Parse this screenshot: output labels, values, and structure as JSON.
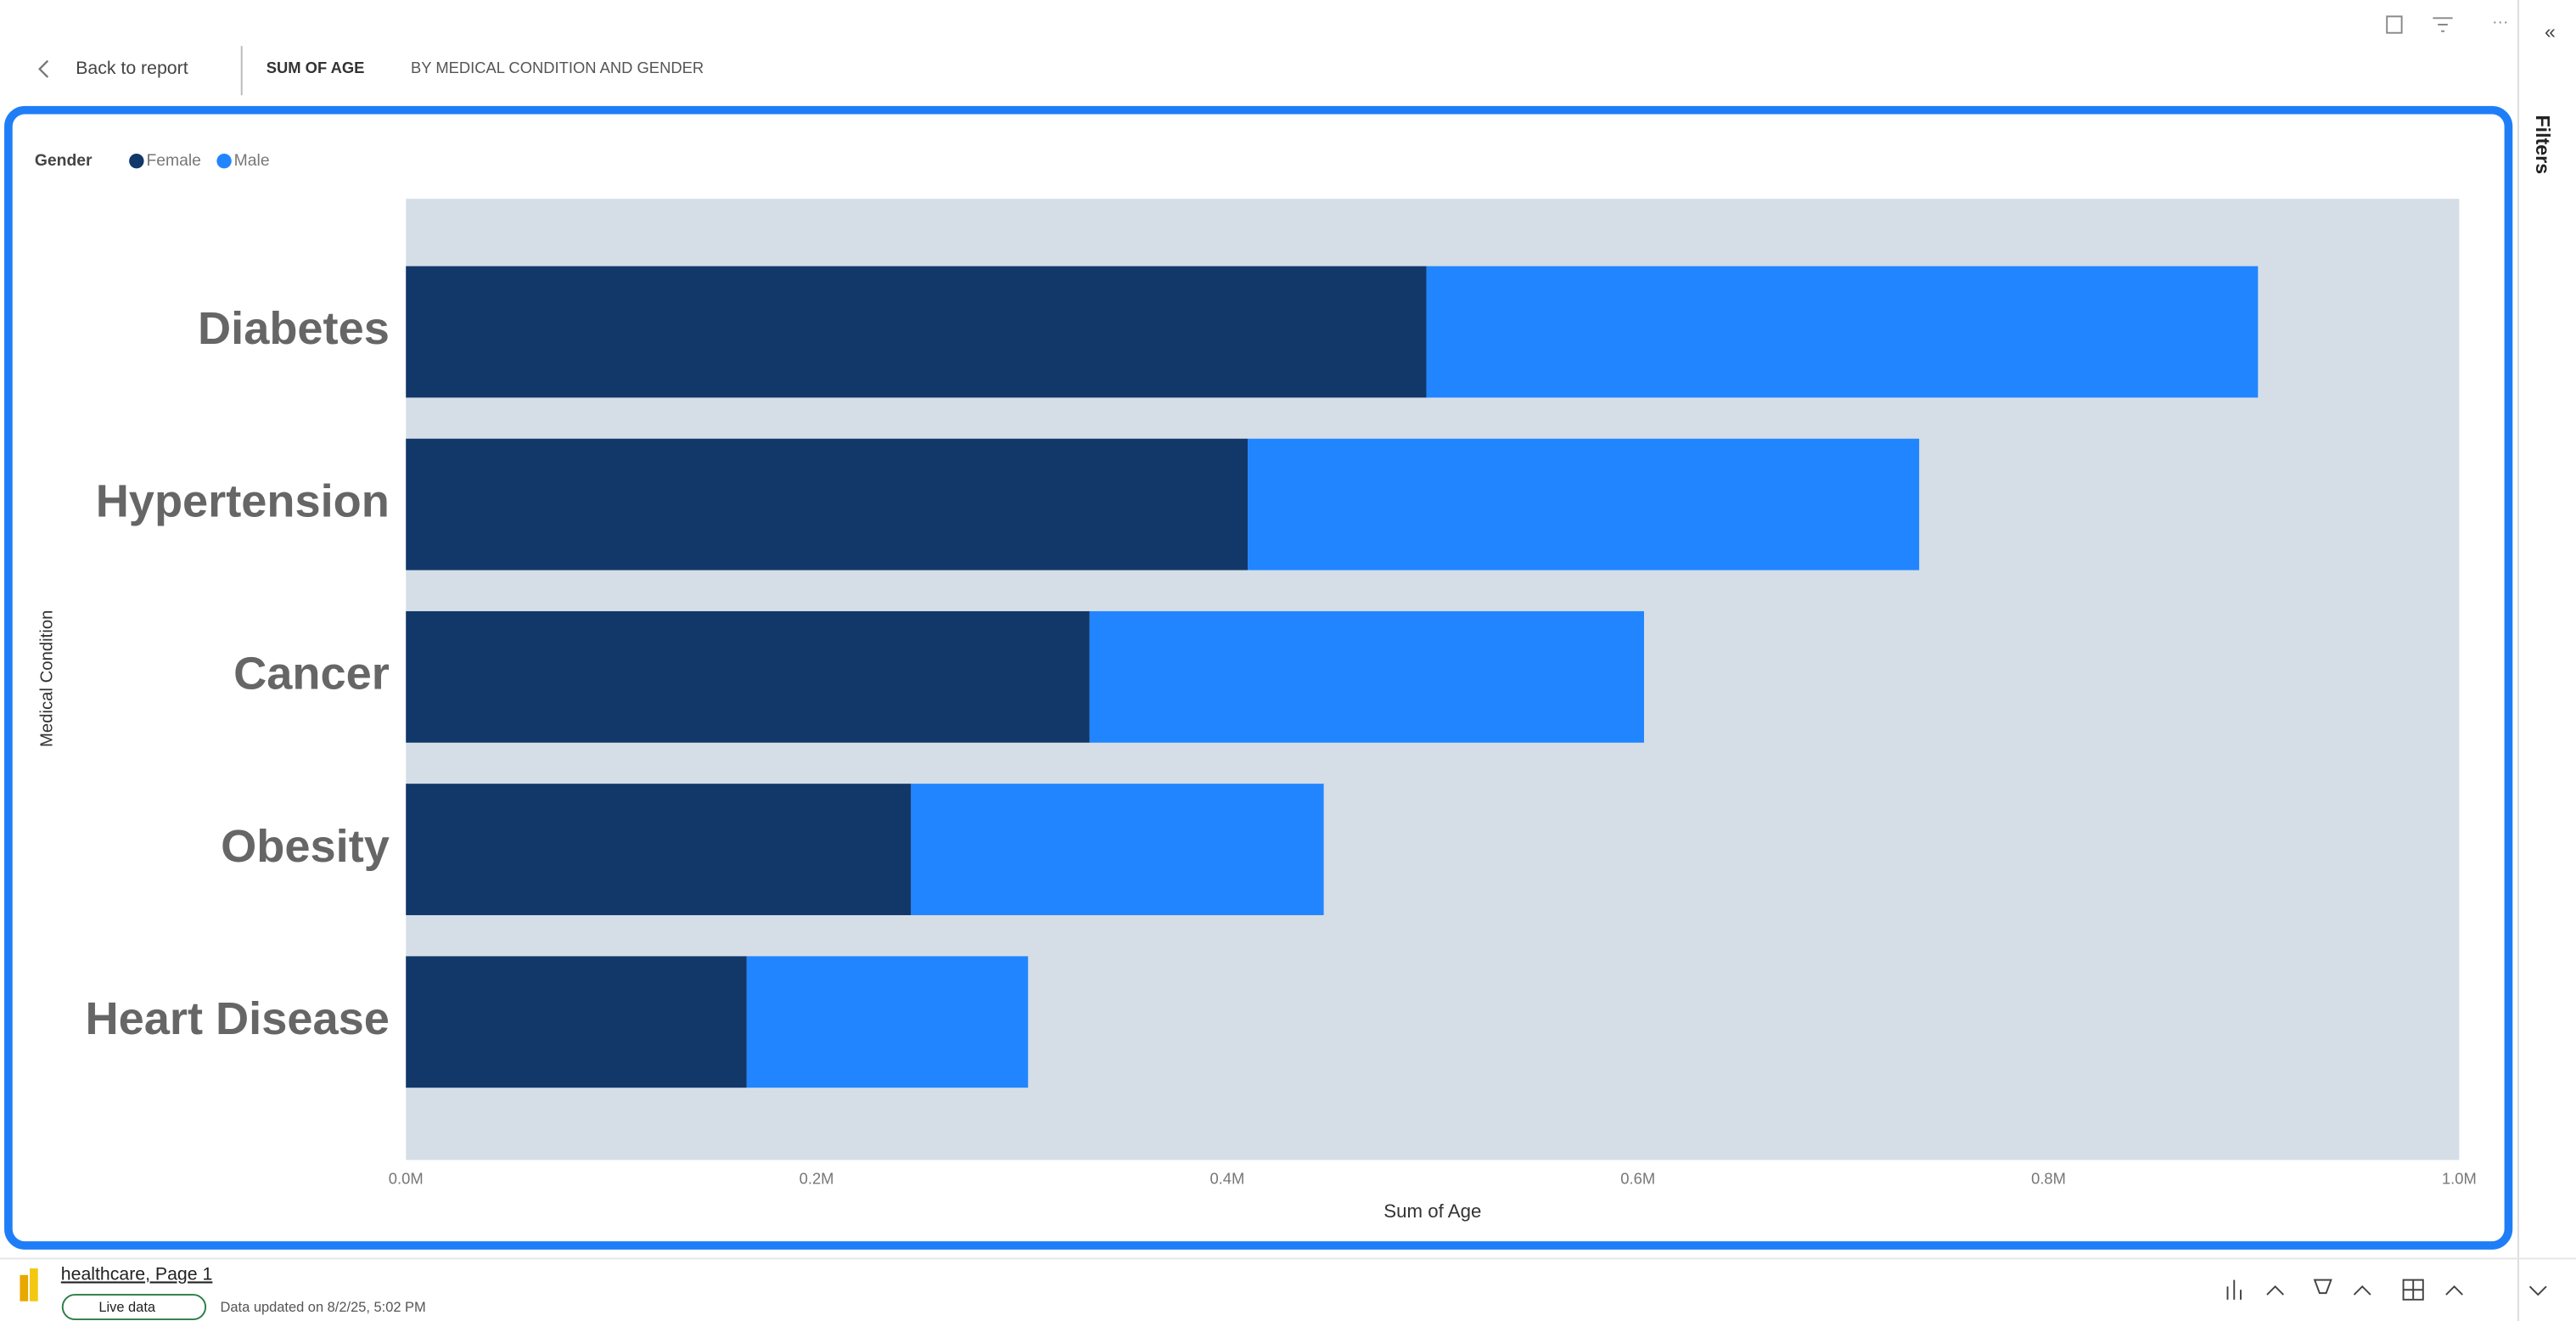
{
  "ui": {
    "back": "Back to report",
    "title_main": "SUM OF AGE",
    "title_rest": "BY MEDICAL CONDITION AND GENDER",
    "filters": "Filters",
    "report_name": "healthcare, Page 1",
    "live": "Live data",
    "updated": "Data updated on 8/2/25, 5:02 PM"
  },
  "chart_data": {
    "type": "bar",
    "orientation": "horizontal",
    "stacked": true,
    "legend_title": "Gender",
    "legend_position": "top-left",
    "x_label": "Sum of Age",
    "y_label": "Medical Condition",
    "categories": [
      "Diabetes",
      "Hypertension",
      "Cancer",
      "Obesity",
      "Heart Disease"
    ],
    "series": [
      {
        "name": "Female",
        "color": "#12386a",
        "values": [
          497000,
          410000,
          333000,
          246000,
          166000
        ]
      },
      {
        "name": "Male",
        "color": "#2185ff",
        "values": [
          405000,
          327000,
          270000,
          201000,
          137000
        ]
      }
    ],
    "xlim": [
      0,
      1000000
    ],
    "xticks": [
      {
        "value": 0,
        "label": "0.0M"
      },
      {
        "value": 200000,
        "label": "0.2M"
      },
      {
        "value": 400000,
        "label": "0.4M"
      },
      {
        "value": 600000,
        "label": "0.6M"
      },
      {
        "value": 800000,
        "label": "0.8M"
      },
      {
        "value": 1000000,
        "label": "1.0M"
      }
    ],
    "grid": false
  }
}
